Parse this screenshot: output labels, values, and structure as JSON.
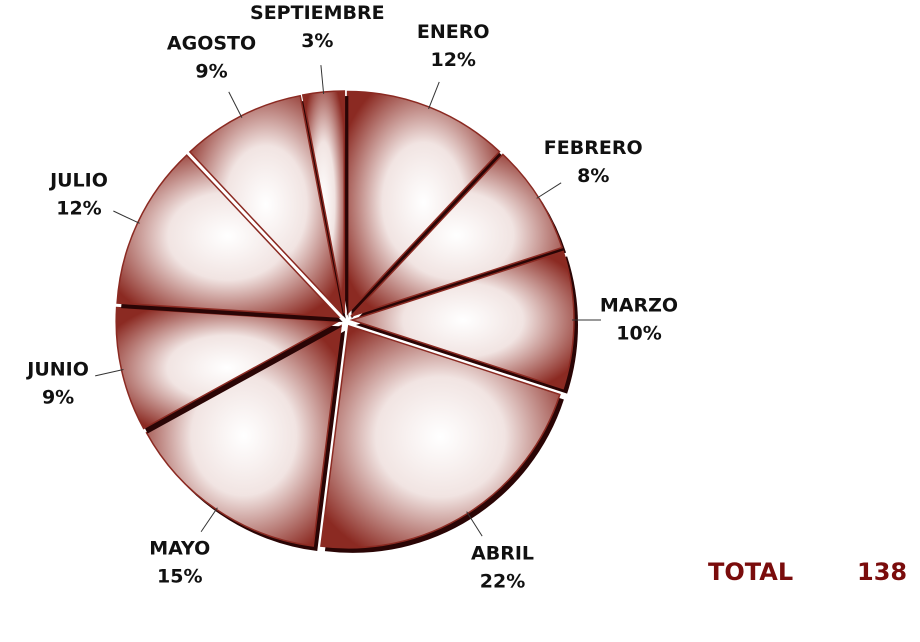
{
  "chart_data": {
    "type": "pie",
    "categories": [
      "ENERO",
      "FEBRERO",
      "MARZO",
      "ABRIL",
      "MAYO",
      "JUNIO",
      "JULIO",
      "AGOSTO",
      "SEPTIEMBRE"
    ],
    "values": [
      12,
      8,
      10,
      22,
      15,
      9,
      12,
      9,
      3
    ],
    "value_labels": [
      "12%",
      "8%",
      "10%",
      "22%",
      "15%",
      "9%",
      "12%",
      "9%",
      "3%"
    ],
    "color": "#8b2a22",
    "annotations": {
      "total_label": "TOTAL",
      "total_value": 138
    }
  }
}
